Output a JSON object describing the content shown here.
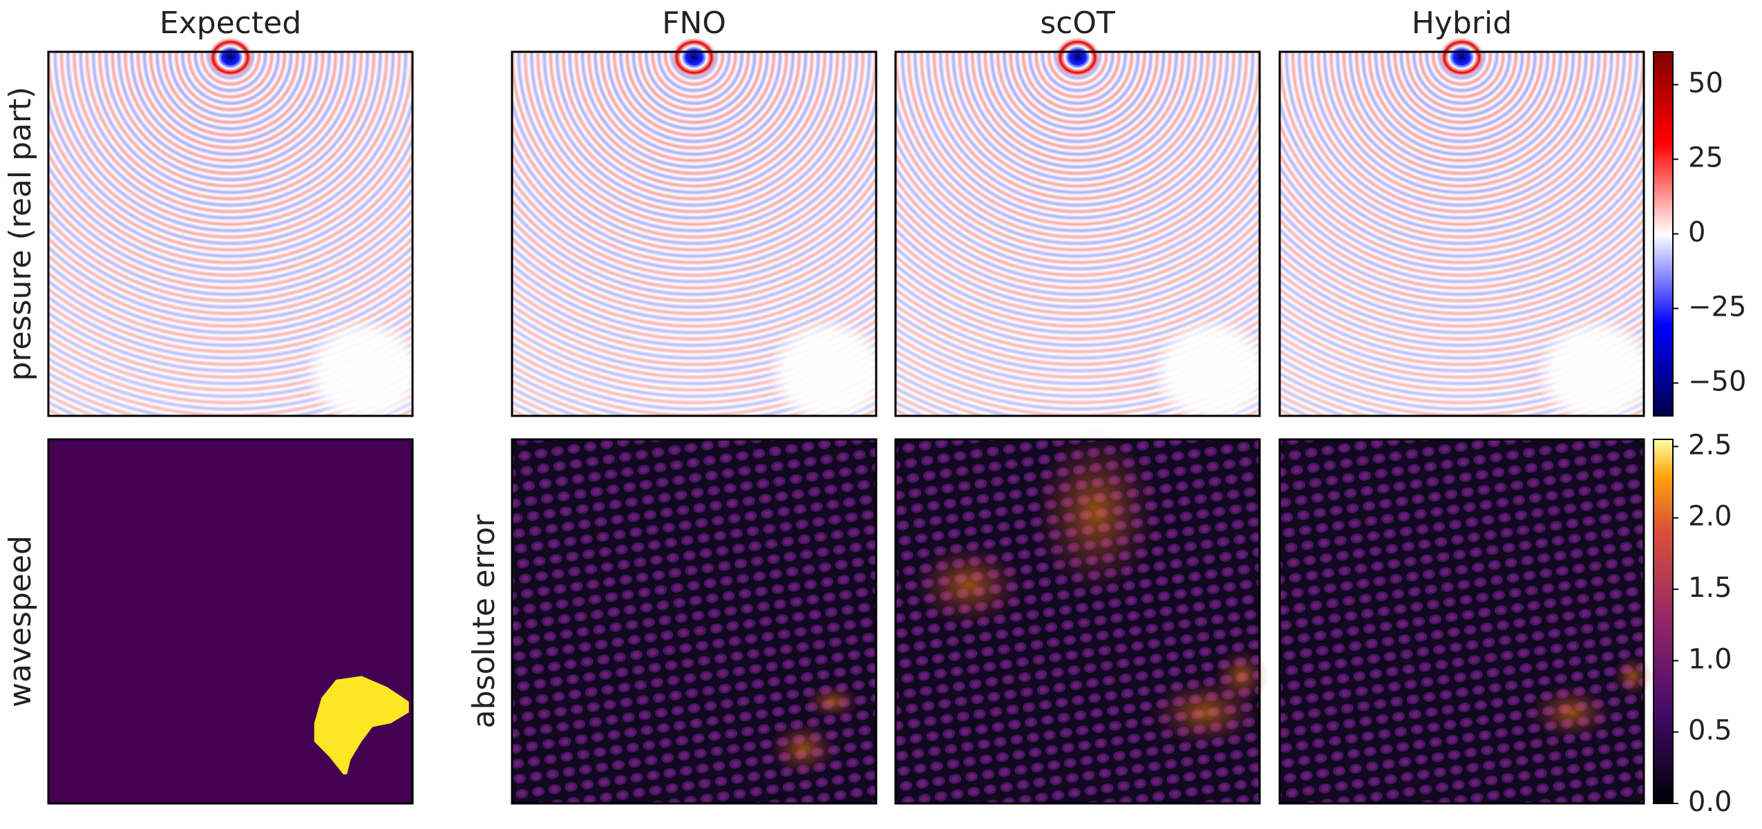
{
  "chart_data": {
    "type": "heatmap-grid",
    "columns": [
      "Expected",
      "FNO",
      "scOT",
      "Hybrid"
    ],
    "row_labels": [
      "pressure (real part)",
      "wavespeed",
      "absolute error"
    ],
    "colorbars": [
      {
        "colormap": "seismic",
        "lim": [
          -61,
          61
        ],
        "ticks": [
          50,
          25,
          0,
          {
            "value": -25,
            "label": "−25"
          },
          {
            "value": -50,
            "label": "−50"
          }
        ]
      },
      {
        "colormap": "inferno",
        "lim": [
          0,
          2.55
        ],
        "ticks": [
          {
            "value": 0,
            "label": "0.0"
          },
          0.5,
          {
            "value": 1,
            "label": "1.0"
          },
          1.5,
          {
            "value": 2,
            "label": "2.0"
          },
          2.5
        ]
      }
    ]
  }
}
